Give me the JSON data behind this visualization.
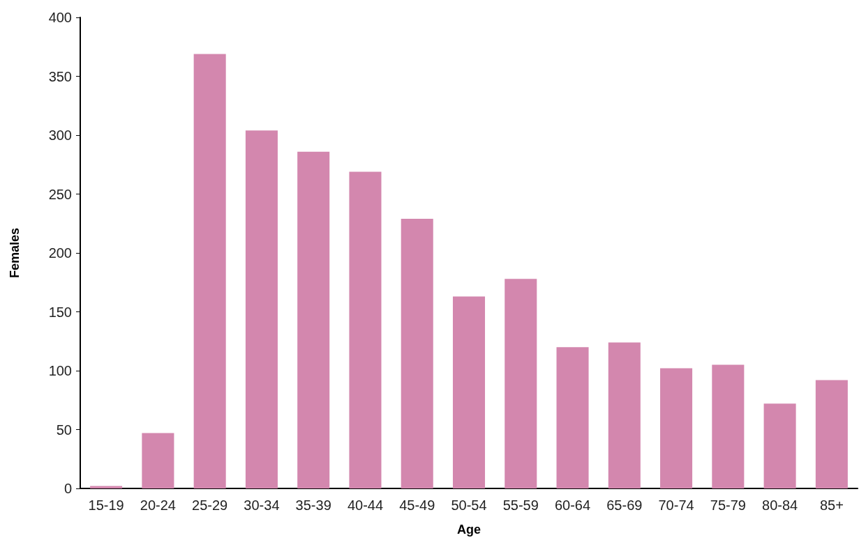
{
  "chart_data": {
    "type": "bar",
    "xlabel": "Age",
    "ylabel": "Females",
    "categories": [
      "15-19",
      "20-24",
      "25-29",
      "30-34",
      "35-39",
      "40-44",
      "45-49",
      "50-54",
      "55-59",
      "60-64",
      "65-69",
      "70-74",
      "75-79",
      "80-84",
      "85+"
    ],
    "values": [
      2,
      47,
      369,
      304,
      286,
      269,
      229,
      163,
      178,
      120,
      124,
      102,
      105,
      72,
      92
    ],
    "color": "#d387ae",
    "ylim": [
      0,
      400
    ],
    "yticks": [
      0,
      50,
      100,
      150,
      200,
      250,
      300,
      350,
      400
    ],
    "grid": false
  }
}
